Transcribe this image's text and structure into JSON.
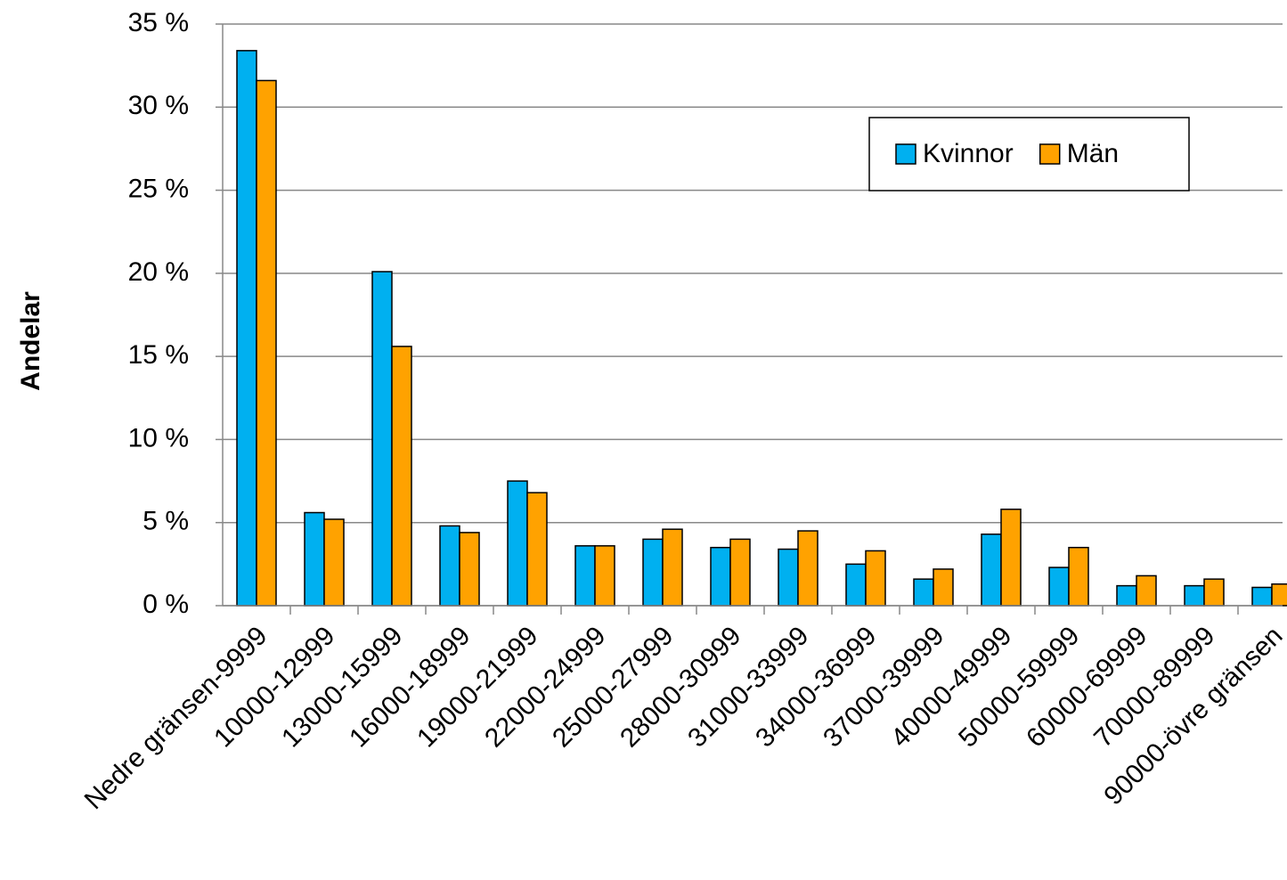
{
  "chart_data": {
    "type": "bar",
    "y_label": "Andelar",
    "categories": [
      "Nedre gränsen-9999",
      "10000-12999",
      "13000-15999",
      "16000-18999",
      "19000-21999",
      "22000-24999",
      "25000-27999",
      "28000-30999",
      "31000-33999",
      "34000-36999",
      "37000-39999",
      "40000-49999",
      "50000-59999",
      "60000-69999",
      "70000-89999",
      "90000-övre gränsen"
    ],
    "series": [
      {
        "name": "Kvinnor",
        "color": "#00b0f0",
        "values": [
          33.4,
          5.6,
          20.1,
          4.8,
          7.5,
          3.6,
          4.0,
          3.5,
          3.4,
          2.5,
          1.6,
          4.3,
          2.3,
          1.2,
          1.2,
          1.1
        ]
      },
      {
        "name": "Män",
        "color": "#ffa200",
        "values": [
          31.6,
          5.2,
          15.6,
          4.4,
          6.8,
          3.6,
          4.6,
          4.0,
          4.5,
          3.3,
          2.2,
          5.8,
          3.5,
          1.8,
          1.6,
          1.3
        ]
      }
    ],
    "ylim": [
      0,
      35
    ],
    "yticks": [
      {
        "value": 0,
        "label": "0 %"
      },
      {
        "value": 5,
        "label": "5 %"
      },
      {
        "value": 10,
        "label": "10 %"
      },
      {
        "value": 15,
        "label": "15 %"
      },
      {
        "value": 20,
        "label": "20 %"
      },
      {
        "value": 25,
        "label": "25 %"
      },
      {
        "value": 30,
        "label": "30 %"
      },
      {
        "value": 35,
        "label": "35 %"
      }
    ],
    "grid": true,
    "legend": "upper-right"
  }
}
